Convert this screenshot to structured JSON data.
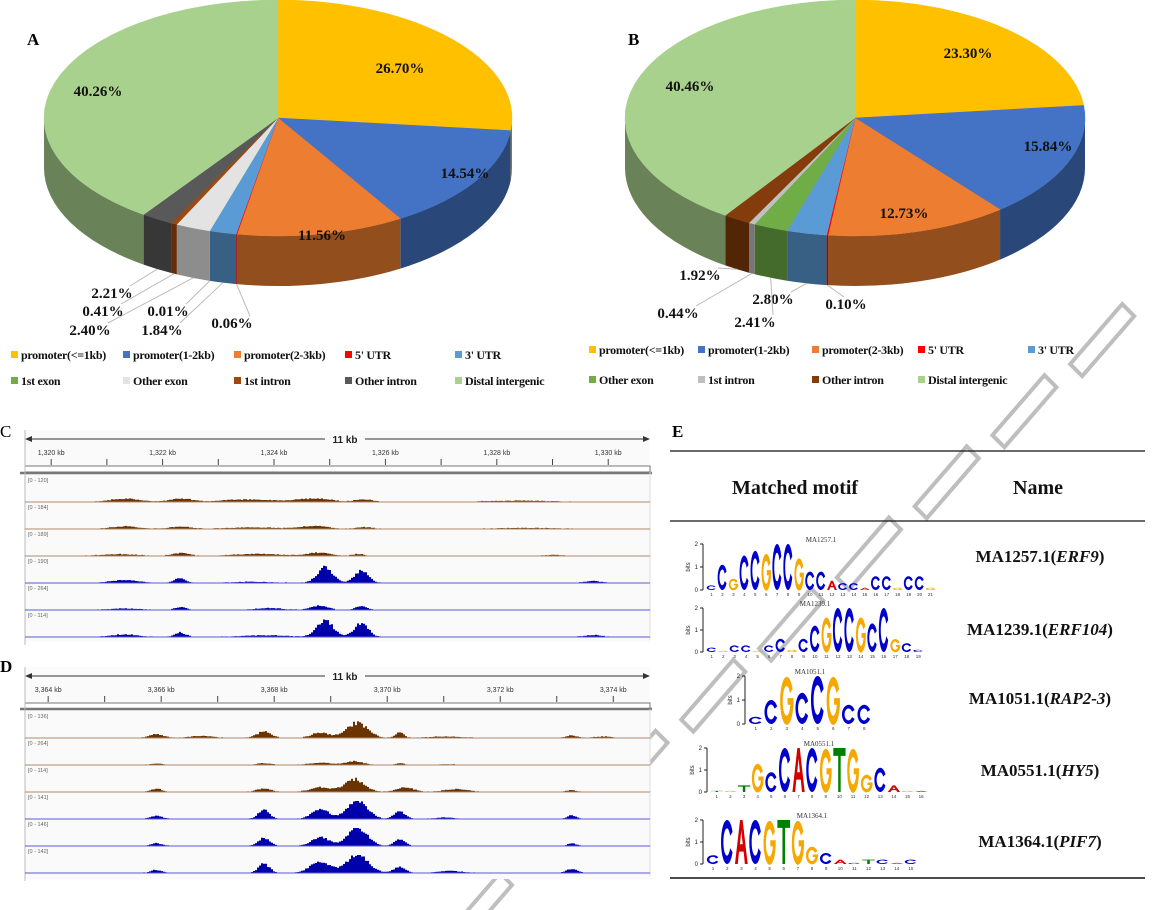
{
  "panels": {
    "a": "A",
    "b": "B",
    "c": "C",
    "d": "D",
    "e": "E"
  },
  "chart_data": [
    {
      "panel": "A",
      "type": "pie",
      "style": "3d",
      "start": "12 o'clock, clockwise",
      "categories": [
        "promoter(<=1kb)",
        "promoter(1-2kb)",
        "promoter(2-3kb)",
        "5' UTR",
        "3' UTR",
        "1st exon",
        "Other exon",
        "1st intron",
        "Other intron",
        "Distal intergenic"
      ],
      "values": [
        26.7,
        14.54,
        11.56,
        0.06,
        1.84,
        0.01,
        2.4,
        0.41,
        2.21,
        40.26
      ],
      "labels": [
        "26.70%",
        "14.54%",
        "11.56%",
        "0.06%",
        "1.84%",
        "0.01%",
        "2.40%",
        "0.41%",
        "2.21%",
        "40.26%"
      ],
      "colors": [
        "#ffc000",
        "#4472c4",
        "#ed7d31",
        "#ff0000",
        "#5b9bd5",
        "#70ad47",
        "#e3e3e3",
        "#9e480e",
        "#595959",
        "#a9d18e"
      ],
      "legend": "bottom"
    },
    {
      "panel": "B",
      "type": "pie",
      "style": "3d",
      "start": "12 o'clock, clockwise",
      "categories": [
        "promoter(<=1kb)",
        "promoter(1-2kb)",
        "promoter(2-3kb)",
        "5' UTR",
        "3' UTR",
        "Other exon",
        "1st intron",
        "Other intron",
        "Distal intergenic"
      ],
      "values": [
        23.3,
        15.84,
        12.73,
        0.1,
        2.8,
        2.41,
        0.44,
        1.92,
        40.46
      ],
      "labels": [
        "23.30%",
        "15.84%",
        "12.73%",
        "0.10%",
        "2.80%",
        "2.41%",
        "0.44%",
        "1.92%",
        "40.46%"
      ],
      "colors": [
        "#ffc000",
        "#4472c4",
        "#ed7d31",
        "#ff0000",
        "#5b9bd5",
        "#70ad47",
        "#bfbfbf",
        "#843c0c",
        "#a9d18e"
      ],
      "legend": "bottom"
    },
    {
      "panel": "C",
      "type": "area",
      "span_label": "11 kb",
      "xlim_kb": [
        1319.53,
        1330.75
      ],
      "ticks": [
        1320,
        1322,
        1324,
        1326,
        1328,
        1330
      ],
      "tick_labels": [
        "1,320 kb",
        "1,322 kb",
        "1,324 kb",
        "1,326 kb",
        "1,328 kb",
        "1,330 kb"
      ],
      "tracks": [
        {
          "range": "[0 - 120]",
          "max": 120,
          "color": "#6b3300",
          "peaks": [
            [
              1321.3,
              22,
              0.5
            ],
            [
              1322.3,
              22,
              0.4
            ],
            [
              1323.5,
              16,
              0.9
            ],
            [
              1324.7,
              22,
              0.6
            ],
            [
              1325.6,
              18,
              0.3
            ],
            [
              1328.4,
              8,
              1.2
            ]
          ]
        },
        {
          "range": "[0 - 184]",
          "max": 184,
          "color": "#6b3300",
          "peaks": [
            [
              1321.3,
              25,
              0.5
            ],
            [
              1322.3,
              22,
              0.4
            ],
            [
              1323.6,
              15,
              0.9
            ],
            [
              1324.7,
              28,
              0.5
            ],
            [
              1325.6,
              18,
              0.3
            ],
            [
              1328.5,
              10,
              1.0
            ]
          ]
        },
        {
          "range": "[0 - 189]",
          "max": 189,
          "color": "#6b3300",
          "peaks": [
            [
              1321.2,
              18,
              0.6
            ],
            [
              1322.3,
              30,
              0.3
            ],
            [
              1323.7,
              22,
              0.8
            ],
            [
              1324.8,
              35,
              0.4
            ],
            [
              1325.5,
              20,
              0.2
            ],
            [
              1329.0,
              10,
              0.3
            ]
          ]
        },
        {
          "range": "[0 - 190]",
          "max": 190,
          "color": "#0000aa",
          "peaks": [
            [
              1321.3,
              30,
              0.5
            ],
            [
              1322.3,
              50,
              0.2
            ],
            [
              1323.6,
              12,
              0.7
            ],
            [
              1324.9,
              160,
              0.28
            ],
            [
              1325.55,
              125,
              0.25
            ],
            [
              1329.7,
              18,
              0.3
            ]
          ]
        },
        {
          "range": "[0 - 264]",
          "max": 264,
          "color": "#0000aa",
          "peaks": [
            [
              1321.3,
              22,
              0.5
            ],
            [
              1322.3,
              42,
              0.2
            ],
            [
              1323.9,
              25,
              0.5
            ],
            [
              1324.8,
              60,
              0.3
            ],
            [
              1325.55,
              55,
              0.2
            ]
          ]
        },
        {
          "range": "[0 - 114]",
          "max": 114,
          "color": "#0000aa",
          "peaks": [
            [
              1321.3,
              15,
              0.5
            ],
            [
              1322.3,
              27,
              0.2
            ],
            [
              1323.8,
              10,
              0.8
            ],
            [
              1324.9,
              100,
              0.3
            ],
            [
              1325.55,
              85,
              0.25
            ],
            [
              1329.7,
              12,
              0.3
            ]
          ]
        }
      ]
    },
    {
      "panel": "D",
      "type": "area",
      "span_label": "11 kb",
      "xlim_kb": [
        3363.59,
        3374.65
      ],
      "ticks": [
        3364,
        3366,
        3368,
        3370,
        3372,
        3374
      ],
      "tick_labels": [
        "3,364 kb",
        "3,366 kb",
        "3,368 kb",
        "3,370 kb",
        "3,372 kb",
        "3,374 kb"
      ],
      "tracks": [
        {
          "range": "[0 - 136]",
          "max": 136,
          "color": "#6b3300",
          "peaks": [
            [
              3365.9,
              28,
              0.25
            ],
            [
              3366.7,
              15,
              0.4
            ],
            [
              3367.8,
              48,
              0.25
            ],
            [
              3368.8,
              40,
              0.3
            ],
            [
              3369.45,
              110,
              0.38
            ],
            [
              3370.2,
              38,
              0.15
            ],
            [
              3371.0,
              10,
              0.6
            ],
            [
              3373.25,
              18,
              0.2
            ],
            [
              3373.8,
              10,
              0.3
            ]
          ]
        },
        {
          "range": "[0 - 264]",
          "max": 264,
          "color": "#6b3300",
          "peaks": [
            [
              3365.9,
              22,
              0.2
            ],
            [
              3367.8,
              25,
              0.25
            ],
            [
              3368.8,
              30,
              0.4
            ],
            [
              3369.4,
              55,
              0.3
            ],
            [
              3370.2,
              25,
              0.15
            ],
            [
              3371.1,
              10,
              0.3
            ]
          ]
        },
        {
          "range": "[0 - 114]",
          "max": 114,
          "color": "#6b3300",
          "peaks": [
            [
              3365.9,
              20,
              0.2
            ],
            [
              3367.8,
              22,
              0.25
            ],
            [
              3368.8,
              30,
              0.35
            ],
            [
              3369.4,
              80,
              0.35
            ],
            [
              3370.3,
              30,
              0.3
            ],
            [
              3371.2,
              18,
              0.4
            ],
            [
              3373.25,
              10,
              0.2
            ]
          ]
        },
        {
          "range": "[0 - 141]",
          "max": 141,
          "color": "#0000aa",
          "peaks": [
            [
              3365.9,
              25,
              0.2
            ],
            [
              3367.8,
              70,
              0.2
            ],
            [
              3368.8,
              75,
              0.3
            ],
            [
              3369.45,
              141,
              0.35
            ],
            [
              3370.2,
              55,
              0.2
            ],
            [
              3371.0,
              12,
              0.3
            ],
            [
              3373.25,
              28,
              0.15
            ]
          ]
        },
        {
          "range": "[0 - 146]",
          "max": 146,
          "color": "#0000aa",
          "peaks": [
            [
              3365.9,
              20,
              0.2
            ],
            [
              3367.8,
              65,
              0.2
            ],
            [
              3368.8,
              70,
              0.3
            ],
            [
              3369.45,
              146,
              0.35
            ],
            [
              3370.2,
              50,
              0.2
            ],
            [
              3373.25,
              20,
              0.15
            ]
          ]
        },
        {
          "range": "[0 - 142]",
          "max": 142,
          "color": "#0000aa",
          "peaks": [
            [
              3365.9,
              22,
              0.2
            ],
            [
              3367.8,
              70,
              0.2
            ],
            [
              3368.8,
              85,
              0.35
            ],
            [
              3369.45,
              142,
              0.38
            ],
            [
              3370.2,
              50,
              0.2
            ],
            [
              3371.1,
              15,
              0.4
            ],
            [
              3373.25,
              30,
              0.2
            ]
          ]
        }
      ]
    }
  ],
  "motif_table": {
    "header": {
      "motif": "Matched motif",
      "name": "Name"
    },
    "y_axis_label": "bits",
    "y_ticks": [
      "0",
      "1",
      "2"
    ],
    "letter_colors": {
      "A": "#d40000",
      "C": "#0000cc",
      "G": "#f5a800",
      "T": "#008000"
    },
    "rows": [
      {
        "id": "MA1257.1",
        "name_prefix": "MA1257.1(",
        "gene": "ERF9",
        "name_suffix": ")",
        "logo": [
          [
            "C",
            0.2
          ],
          [
            "C",
            1.1
          ],
          [
            "G",
            0.5
          ],
          [
            "C",
            1.5
          ],
          [
            "C",
            1.7
          ],
          [
            "G",
            1.6
          ],
          [
            "C",
            2.0
          ],
          [
            "C",
            2.0
          ],
          [
            "G",
            1.4
          ],
          [
            "C",
            0.8
          ],
          [
            "C",
            0.8
          ],
          [
            "A",
            0.4
          ],
          [
            "C",
            0.3
          ],
          [
            "C",
            0.3
          ],
          [
            "A",
            0.1
          ],
          [
            "C",
            0.6
          ],
          [
            "C",
            0.6
          ],
          [
            "G",
            0.1
          ],
          [
            "C",
            0.6
          ],
          [
            "C",
            0.6
          ],
          [
            "G",
            0.1
          ]
        ]
      },
      {
        "id": "MA1239.1",
        "name_prefix": "MA1239.1(",
        "gene": "ERF104",
        "name_suffix": ")",
        "logo": [
          [
            "C",
            0.2
          ],
          [
            "G",
            0.05
          ],
          [
            "C",
            0.3
          ],
          [
            "C",
            0.3
          ],
          [
            "G",
            0.05
          ],
          [
            "C",
            0.3
          ],
          [
            "C",
            0.6
          ],
          [
            "G",
            0.1
          ],
          [
            "C",
            0.6
          ],
          [
            "C",
            1.2
          ],
          [
            "G",
            1.6
          ],
          [
            "C",
            2.0
          ],
          [
            "C",
            2.0
          ],
          [
            "G",
            1.6
          ],
          [
            "C",
            1.3
          ],
          [
            "C",
            2.0
          ],
          [
            "G",
            0.6
          ],
          [
            "C",
            0.4
          ],
          [
            "C",
            0.1
          ]
        ]
      },
      {
        "id": "MA1051.1",
        "name_prefix": "MA1051.1(",
        "gene": "RAP2-3",
        "name_suffix": ")",
        "logo": [
          [
            "C",
            0.3
          ],
          [
            "C",
            1.0
          ],
          [
            "G",
            2.0
          ],
          [
            "C",
            1.3
          ],
          [
            "C",
            2.0
          ],
          [
            "G",
            2.0
          ],
          [
            "C",
            0.8
          ],
          [
            "C",
            0.8
          ]
        ]
      },
      {
        "id": "MA0551.1",
        "name_prefix": "MA0551.1(",
        "gene": "HY5",
        "name_suffix": ")",
        "logo": [
          [
            "T",
            0.05
          ],
          [
            "G",
            0.05
          ],
          [
            "T",
            0.3
          ],
          [
            "G",
            1.3
          ],
          [
            "C",
            0.9
          ],
          [
            "C",
            2.0
          ],
          [
            "A",
            2.0
          ],
          [
            "C",
            2.0
          ],
          [
            "G",
            2.0
          ],
          [
            "T",
            2.0
          ],
          [
            "G",
            2.0
          ],
          [
            "G",
            0.8
          ],
          [
            "C",
            1.1
          ],
          [
            "A",
            0.3
          ],
          [
            "G",
            0.05
          ],
          [
            "A",
            0.05
          ]
        ]
      },
      {
        "id": "MA1364.1",
        "name_prefix": "MA1364.1(",
        "gene": "PIF7",
        "name_suffix": ")",
        "logo": [
          [
            "C",
            0.4
          ],
          [
            "C",
            2.0
          ],
          [
            "A",
            2.0
          ],
          [
            "C",
            2.0
          ],
          [
            "G",
            2.0
          ],
          [
            "T",
            2.0
          ],
          [
            "G",
            2.0
          ],
          [
            "G",
            0.8
          ],
          [
            "C",
            0.5
          ],
          [
            "A",
            0.2
          ],
          [
            "C",
            0.05
          ],
          [
            "T",
            0.2
          ],
          [
            "C",
            0.2
          ],
          [
            "A",
            0.05
          ],
          [
            "C",
            0.2
          ]
        ]
      }
    ]
  },
  "watermark": "ACCEPTED MANUSCRIPT"
}
